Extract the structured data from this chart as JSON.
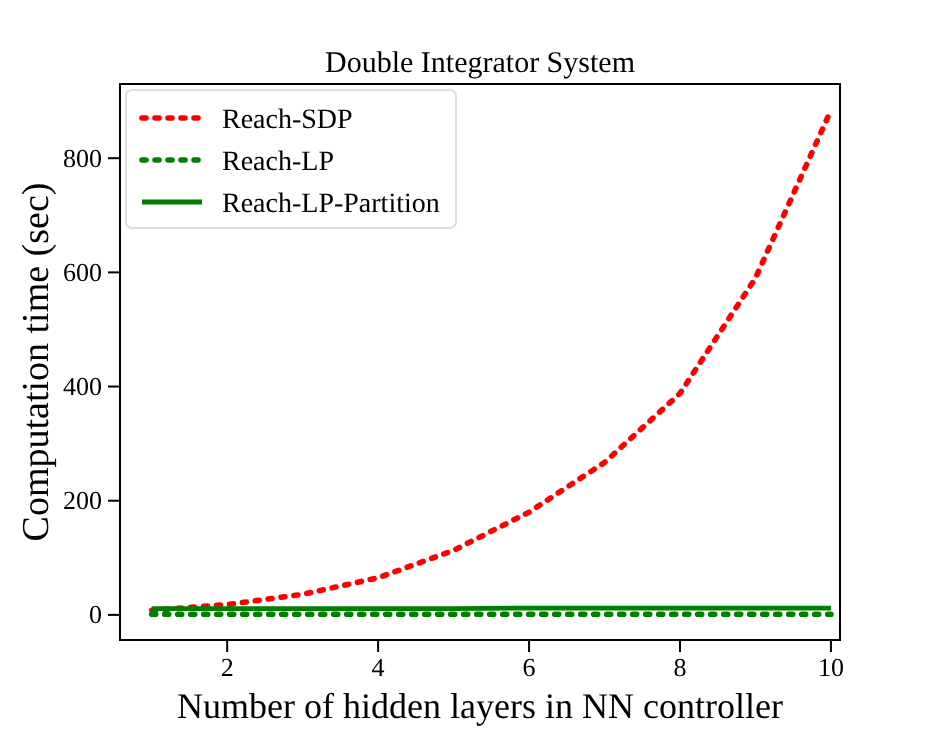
{
  "chart_data": {
    "type": "line",
    "title": "Double Integrator System",
    "xlabel": "Number of hidden layers in NN controller",
    "ylabel": "Computation time (sec)",
    "x": [
      1,
      2,
      3,
      4,
      5,
      6,
      7,
      8,
      9,
      10
    ],
    "series": [
      {
        "name": "Reach-SDP",
        "color": "#ff0000",
        "line_style": "dotted",
        "values": [
          8,
          18,
          36,
          65,
          113,
          180,
          267,
          388,
          590,
          884
        ]
      },
      {
        "name": "Reach-LP",
        "color": "#007f00",
        "line_style": "dotted",
        "values": [
          1,
          1,
          1,
          1,
          1,
          1,
          1,
          1,
          1,
          1
        ]
      },
      {
        "name": "Reach-LP-Partition",
        "color": "#007f00",
        "line_style": "solid",
        "values": [
          11,
          11,
          11,
          11,
          11,
          12,
          12,
          12,
          12,
          12
        ]
      }
    ],
    "xlim": [
      0.58,
      10.12
    ],
    "ylim": [
      -44,
      930
    ],
    "xticks": [
      2,
      4,
      6,
      8,
      10
    ],
    "yticks": [
      0,
      200,
      400,
      600,
      800
    ],
    "grid": false,
    "legend": "top left",
    "marker": "none"
  }
}
